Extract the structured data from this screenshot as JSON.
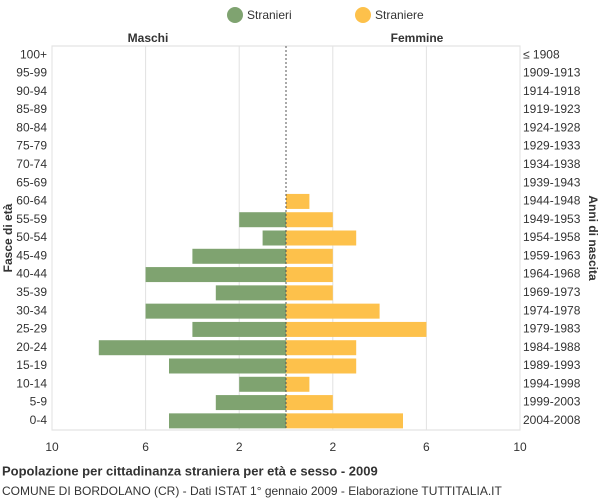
{
  "chart_data": {
    "type": "pyramid",
    "title": "Popolazione per cittadinanza straniera per età e sesso - 2009",
    "subtitle": "COMUNE DI BORDOLANO (CR) - Dati ISTAT 1° gennaio 2009 - Elaborazione TUTTITALIA.IT",
    "left_label": "Maschi",
    "right_label": "Femmine",
    "y_label": "Fasce di età",
    "y2_label": "Anni di nascita",
    "categories": [
      "100+",
      "95-99",
      "90-94",
      "85-89",
      "80-84",
      "75-79",
      "70-74",
      "65-69",
      "60-64",
      "55-59",
      "50-54",
      "45-49",
      "40-44",
      "35-39",
      "30-34",
      "25-29",
      "20-24",
      "15-19",
      "10-14",
      "5-9",
      "0-4"
    ],
    "birth_years": [
      "≤ 1908",
      "1909-1913",
      "1914-1918",
      "1919-1923",
      "1924-1928",
      "1929-1933",
      "1934-1938",
      "1939-1943",
      "1944-1948",
      "1949-1953",
      "1954-1958",
      "1959-1963",
      "1964-1968",
      "1969-1973",
      "1974-1978",
      "1979-1983",
      "1984-1988",
      "1989-1993",
      "1994-1998",
      "1999-2003",
      "2004-2008"
    ],
    "series": [
      {
        "name": "Stranieri",
        "color": "#7fa370",
        "side": "left",
        "values": [
          0,
          0,
          0,
          0,
          0,
          0,
          0,
          0,
          0,
          2,
          1,
          4,
          6,
          3,
          6,
          4,
          8,
          5,
          2,
          3,
          5
        ]
      },
      {
        "name": "Straniere",
        "color": "#fdc14b",
        "side": "right",
        "values": [
          0,
          0,
          0,
          0,
          0,
          0,
          0,
          0,
          1,
          2,
          3,
          2,
          2,
          2,
          4,
          6,
          3,
          3,
          1,
          2,
          5
        ]
      }
    ],
    "xlim": [
      0,
      10
    ],
    "xticks": [
      2,
      6,
      10
    ],
    "grid": true
  }
}
